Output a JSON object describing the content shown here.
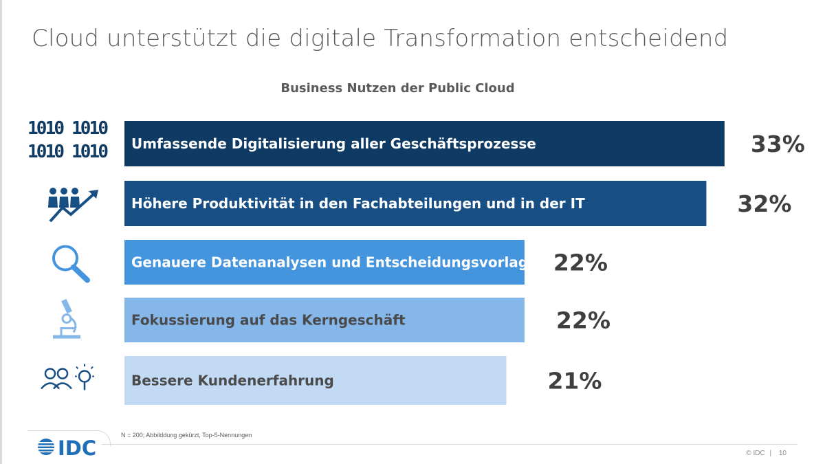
{
  "slide": {
    "title": "Cloud unterstützt die digitale Transformation entscheidend",
    "footnote": "N = 200; Abbilddung gekürzt, Top-5-Nennungen",
    "copyright": "© IDC",
    "separator": "|",
    "page_number": "10",
    "logo_text": "IDC"
  },
  "icons": [
    "binary-code-icon",
    "productivity-growth-icon",
    "magnifier-icon",
    "microscope-icon",
    "customers-idea-icon"
  ],
  "chart_data": {
    "type": "bar",
    "orientation": "horizontal",
    "title": "Business Nutzen der Public Cloud",
    "categories": [
      "Umfassende Digitalisierung aller Geschäftsprozesse",
      "Höhere Produktivität in den Fachabteilungen und in der IT",
      "Genauere Datenanalysen und Entscheidungsvorlagen",
      "Fokussierung auf das Kerngeschäft",
      "Bessere Kundenerfahrung"
    ],
    "values": [
      33,
      32,
      22,
      22,
      21
    ],
    "value_labels": [
      "33%",
      "32%",
      "22%",
      "22%",
      "21%"
    ],
    "unit": "%",
    "bar_colors": [
      "#0f3a63",
      "#174f85",
      "#4595de",
      "#85b7ea",
      "#c3daf4"
    ],
    "label_colors": [
      "#ffffff",
      "#ffffff",
      "#ffffff",
      "#4a4a4a",
      "#4a4a4a"
    ],
    "grid": false,
    "legend": "none"
  }
}
